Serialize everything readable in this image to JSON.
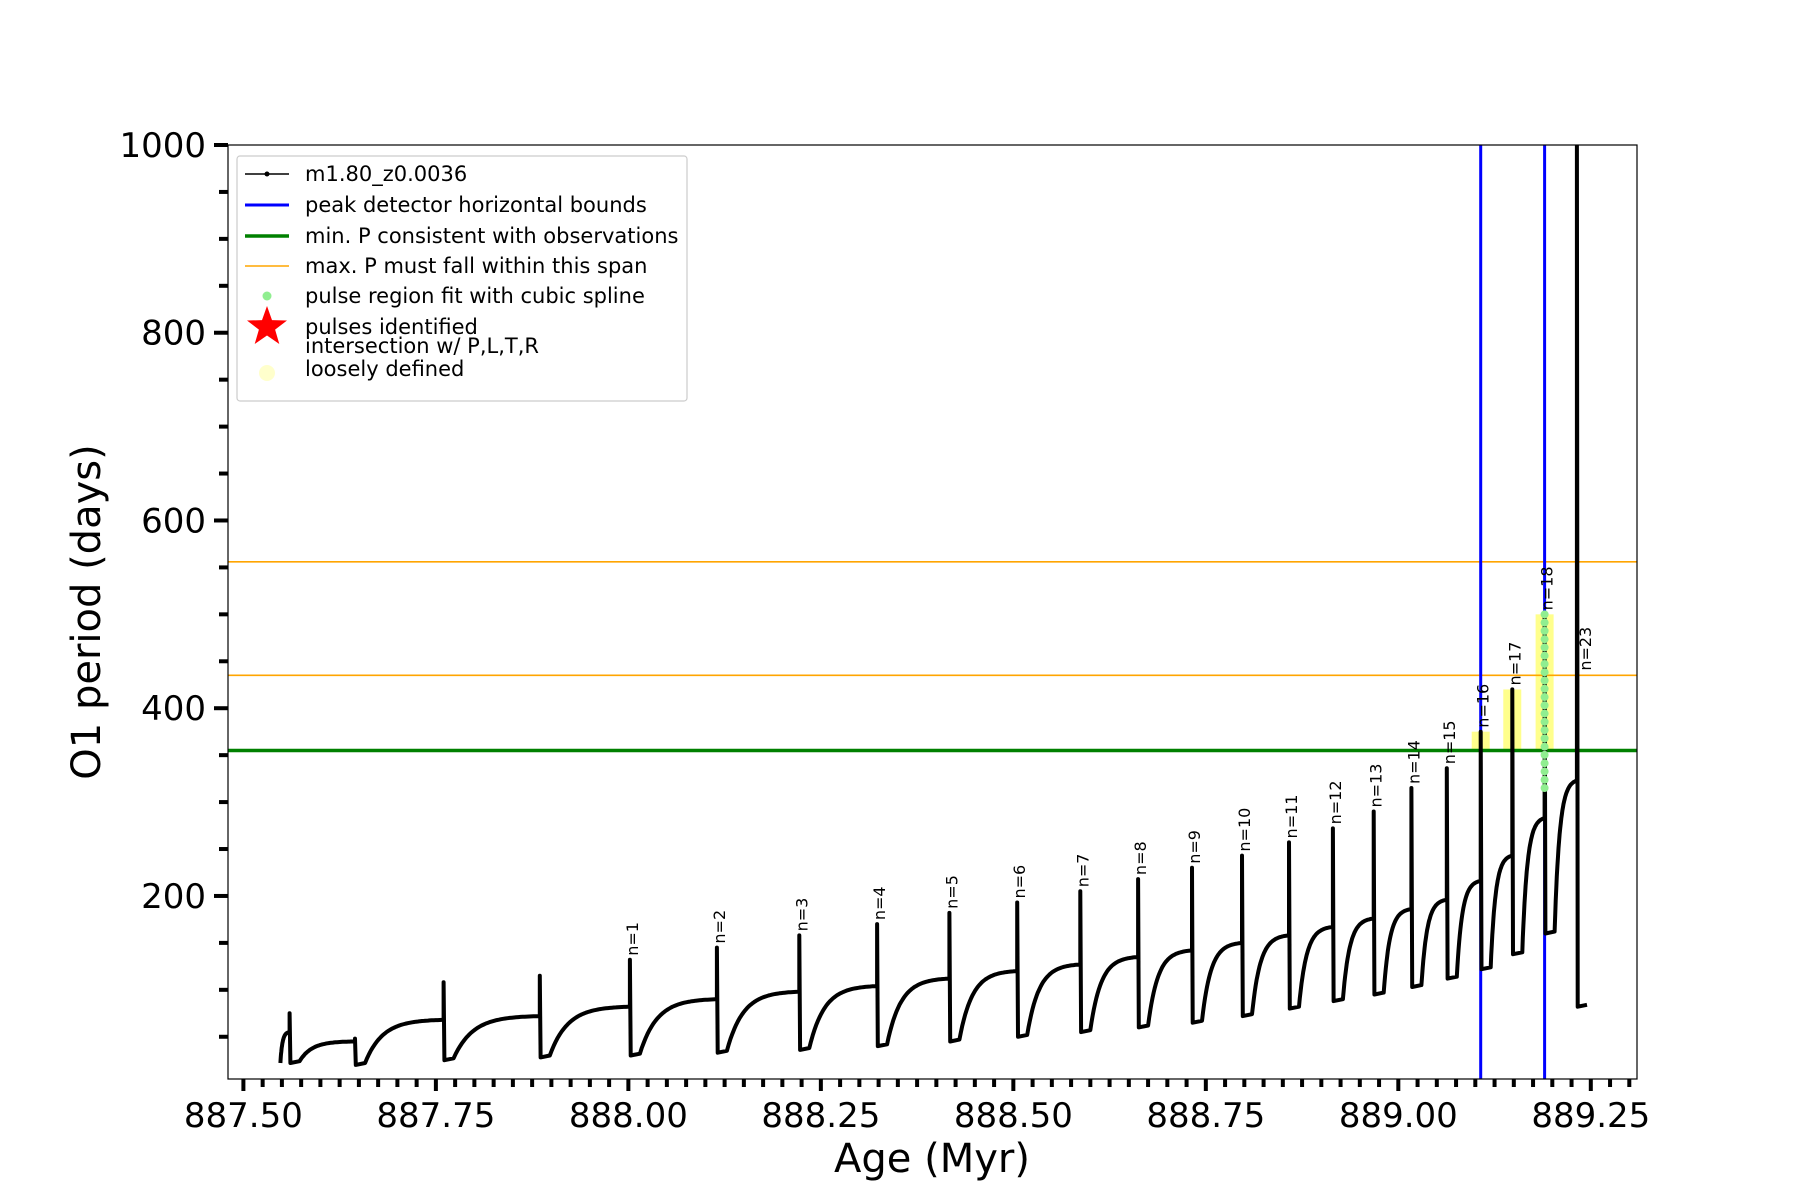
{
  "chart_data": {
    "type": "line",
    "title": "",
    "xlabel": "Age (Myr)",
    "ylabel": "O1 period (days)",
    "xlim": [
      887.48,
      889.31
    ],
    "ylim": [
      5,
      1000
    ],
    "x_ticks": [
      887.5,
      887.75,
      888.0,
      888.25,
      888.5,
      888.75,
      889.0,
      889.25
    ],
    "x_tick_labels": [
      "887.50",
      "887.75",
      "888.00",
      "888.25",
      "888.50",
      "888.75",
      "889.00",
      "889.25"
    ],
    "y_ticks": [
      200,
      400,
      600,
      800,
      1000
    ],
    "y_tick_labels": [
      "200",
      "400",
      "600",
      "800",
      "1000"
    ],
    "grid": false,
    "legend_position": "top-left",
    "series": [
      {
        "name": "m1.80_z0.0036",
        "color": "#000000",
        "style": "line-with-dots",
        "pulses": [
          {
            "age": 887.56,
            "base": 55,
            "peak": 75,
            "dip": 22
          },
          {
            "age": 887.645,
            "base": 45,
            "peak": 48,
            "dip": 20
          },
          {
            "age": 887.76,
            "base": 68,
            "peak": 108,
            "dip": 25
          },
          {
            "age": 887.885,
            "base": 72,
            "peak": 115,
            "dip": 28
          },
          {
            "age": 888.002,
            "base": 82,
            "peak": 132,
            "dip": 30,
            "label": "n=1"
          },
          {
            "age": 888.115,
            "base": 90,
            "peak": 145,
            "dip": 33,
            "label": "n=2"
          },
          {
            "age": 888.222,
            "base": 98,
            "peak": 158,
            "dip": 36,
            "label": "n=3"
          },
          {
            "age": 888.323,
            "base": 104,
            "peak": 170,
            "dip": 40,
            "label": "n=4"
          },
          {
            "age": 888.417,
            "base": 112,
            "peak": 182,
            "dip": 45,
            "label": "n=5"
          },
          {
            "age": 888.505,
            "base": 120,
            "peak": 193,
            "dip": 50,
            "label": "n=6"
          },
          {
            "age": 888.587,
            "base": 127,
            "peak": 205,
            "dip": 55,
            "label": "n=7"
          },
          {
            "age": 888.662,
            "base": 135,
            "peak": 218,
            "dip": 60,
            "label": "n=8"
          },
          {
            "age": 888.732,
            "base": 142,
            "peak": 230,
            "dip": 65,
            "label": "n=9"
          },
          {
            "age": 888.797,
            "base": 150,
            "peak": 243,
            "dip": 72,
            "label": "n=10"
          },
          {
            "age": 888.858,
            "base": 158,
            "peak": 257,
            "dip": 80,
            "label": "n=11"
          },
          {
            "age": 888.915,
            "base": 167,
            "peak": 272,
            "dip": 88,
            "label": "n=12"
          },
          {
            "age": 888.968,
            "base": 176,
            "peak": 290,
            "dip": 95,
            "label": "n=13"
          },
          {
            "age": 889.017,
            "base": 186,
            "peak": 315,
            "dip": 103,
            "label": "n=14"
          },
          {
            "age": 889.063,
            "base": 196,
            "peak": 336,
            "dip": 112,
            "label": "n=15"
          },
          {
            "age": 889.107,
            "base": 216,
            "peak": 375,
            "dip": 122,
            "label": "n=16"
          },
          {
            "age": 889.148,
            "base": 243,
            "peak": 420,
            "dip": 138,
            "label": "n=17"
          },
          {
            "age": 889.19,
            "base": 283,
            "peak": 500,
            "dip": 160,
            "label": "n=18"
          },
          {
            "age": 889.232,
            "base": 323,
            "peak": 1000,
            "dip": 82,
            "label": "n=23"
          }
        ]
      },
      {
        "name": "peak detector horizontal bounds",
        "color": "#0000ff",
        "style": "vline",
        "x": [
          889.107,
          889.19
        ]
      },
      {
        "name": "min. P consistent with observations",
        "color": "#008000",
        "style": "hline",
        "y": 355
      },
      {
        "name": "max. P must fall within this span",
        "color": "#ffa500",
        "style": "hline",
        "y": [
          435,
          556
        ]
      },
      {
        "name": "pulse region fit with cubic spline",
        "color": "#90ee90",
        "style": "dots",
        "x": 889.19,
        "y_range": [
          315,
          500
        ]
      },
      {
        "name": "pulses identified",
        "color": "#ff0000",
        "style": "star"
      },
      {
        "name": "intersection w/ P,L,T,R\nloosely defined",
        "color": "#ffff66",
        "style": "highlight",
        "regions": [
          {
            "x": 889.107,
            "y_range": [
              355,
              375
            ]
          },
          {
            "x": 889.148,
            "y_range": [
              355,
              420
            ]
          },
          {
            "x": 889.19,
            "y_range": [
              355,
              500
            ]
          }
        ]
      }
    ]
  }
}
